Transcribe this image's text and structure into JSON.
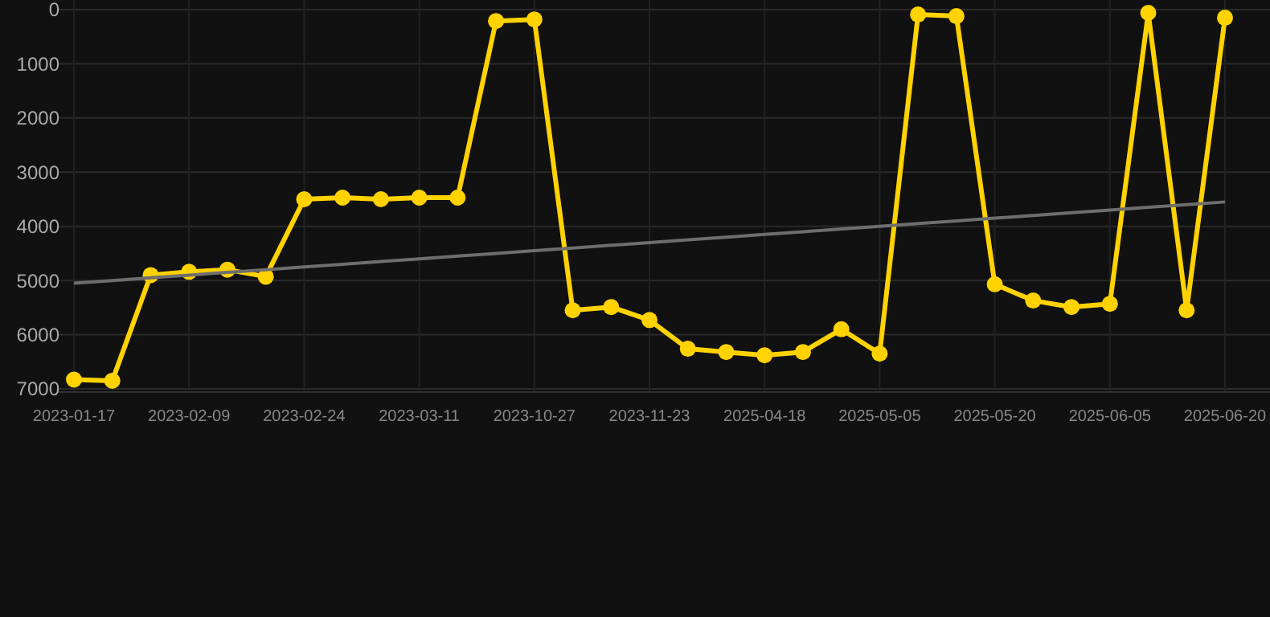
{
  "chart_data": {
    "type": "line",
    "categories": [
      "2023-01-17",
      null,
      null,
      "2023-02-09",
      null,
      null,
      "2023-02-24",
      null,
      null,
      "2023-03-11",
      null,
      null,
      "2023-10-27",
      null,
      null,
      "2023-11-23",
      null,
      null,
      "2025-04-18",
      null,
      null,
      "2025-05-05",
      null,
      null,
      "2025-05-20",
      null,
      null,
      "2025-06-05",
      null,
      null,
      "2025-06-20"
    ],
    "series": [
      {
        "color": "#ffd200",
        "marker": "circle",
        "values": [
          6830,
          6850,
          4900,
          4840,
          4800,
          4930,
          3500,
          3470,
          3500,
          3470,
          3470,
          210,
          180,
          5550,
          5490,
          5730,
          6260,
          6320,
          6380,
          6320,
          5900,
          6350,
          90,
          120,
          5070,
          5370,
          5490,
          5430,
          60,
          5550,
          150
        ]
      },
      {
        "type": "line",
        "color": "#6e6e6e",
        "marker": "none",
        "values": [
          5050,
          5000,
          4950,
          4900,
          4850,
          4800,
          4750,
          4700,
          4650,
          4600,
          4550,
          4500,
          4450,
          4400,
          4350,
          4300,
          4250,
          4200,
          4150,
          4100,
          4050,
          4000,
          3950,
          3900,
          3850,
          3800,
          3750,
          3700,
          3650,
          3600,
          3550
        ]
      }
    ],
    "ylim": [
      7000,
      0
    ],
    "yticks": [
      0,
      1000,
      2000,
      3000,
      4000,
      5000,
      6000,
      7000
    ],
    "grid": true
  }
}
